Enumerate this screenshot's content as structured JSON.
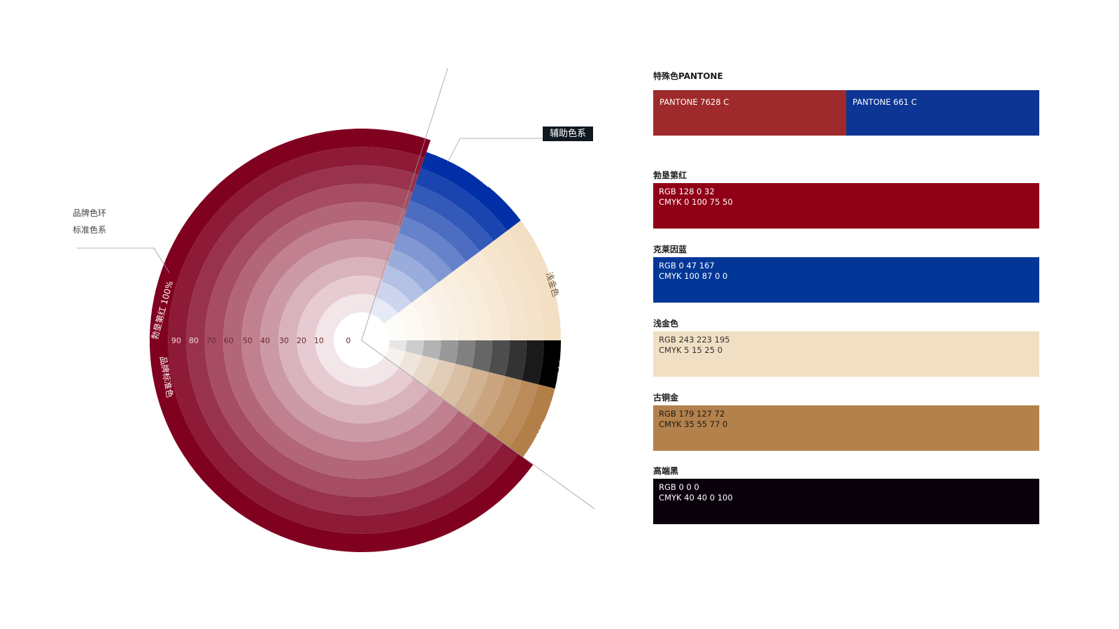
{
  "wheel": {
    "brand_ring_label_line1": "品牌色环",
    "brand_ring_label_line2": "标准色系",
    "aux_tag": "辅助色系",
    "scale_labels": [
      "90",
      "80",
      "70",
      "60",
      "50",
      "40",
      "30",
      "20",
      "10",
      "0"
    ],
    "main_label": "勃垦第红",
    "main_pct": "100%",
    "main_sub": "品牌标准色",
    "sectors": [
      {
        "name": "克莱因蓝",
        "color": "#002FA7"
      },
      {
        "name": "浅金色",
        "color": "#F3DFC3"
      },
      {
        "name": "高端黑",
        "color": "#000000"
      },
      {
        "name": "古铜金",
        "color": "#B37F48"
      },
      {
        "name": "勃垦第红",
        "color": "#800020"
      }
    ]
  },
  "palette": {
    "pantone": {
      "title": "特殊色PANTONE",
      "items": [
        {
          "label": "PANTONE 7628 C",
          "color": "#9E2A2B"
        },
        {
          "label": "PANTONE 661 C",
          "color": "#0D3593"
        }
      ]
    },
    "colors": [
      {
        "title": "勃垦第红",
        "rgb": "RGB 128 0 32",
        "cmyk": "CMYK  0 100 75 50",
        "bg": "#8F0016",
        "text": "#ffffff"
      },
      {
        "title": "克莱因蓝",
        "rgb": "RGB 0  47 167",
        "cmyk": "CMYK  100 87 0 0",
        "bg": "#023797",
        "text": "#ffffff"
      },
      {
        "title": "浅金色",
        "rgb": "RGB 243 223 195",
        "cmyk": "CMYK  5 15 25 0",
        "bg": "#F0DFC2",
        "text": "#333333"
      },
      {
        "title": "古铜金",
        "rgb": "RGB 179 127 72",
        "cmyk": "CMYK  35 55 77 0",
        "bg": "#B3814B",
        "text": "#1a1a1a"
      },
      {
        "title": "高端黑",
        "rgb": "RGB 0 0 0",
        "cmyk": "CMYK  40 40 0 100",
        "bg": "#0A000C",
        "text": "#ffffff"
      }
    ]
  }
}
